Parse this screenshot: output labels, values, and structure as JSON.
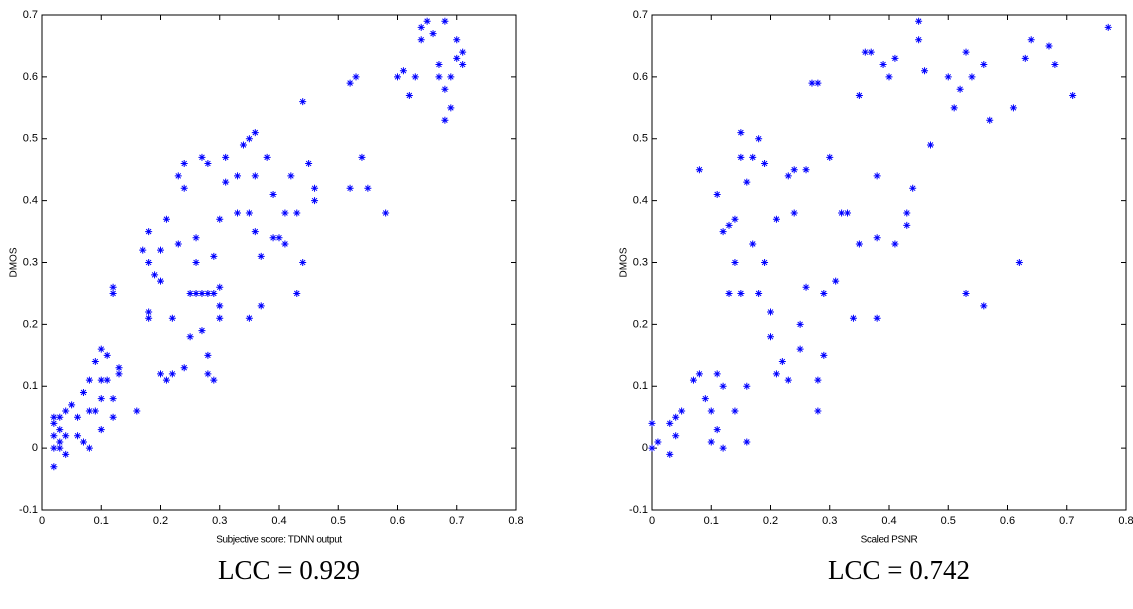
{
  "chart_data": [
    {
      "type": "scatter",
      "xlabel": "Subjective score: TDNN output",
      "ylabel": "DMOS",
      "color": "#0000ff",
      "annotation": "LCC = 0.929",
      "xlim": [
        0,
        0.8
      ],
      "ylim": [
        -0.1,
        0.7
      ],
      "xticks": [
        0,
        0.1,
        0.2,
        0.3,
        0.4,
        0.5,
        0.6,
        0.7,
        0.8
      ],
      "yticks": [
        -0.1,
        0,
        0.1,
        0.2,
        0.3,
        0.4,
        0.5,
        0.6,
        0.7
      ],
      "x": [
        0.02,
        0.02,
        0.02,
        0.02,
        0.03,
        0.03,
        0.03,
        0.04,
        0.04,
        0.02,
        0.03,
        0.04,
        0.05,
        0.06,
        0.06,
        0.07,
        0.08,
        0.08,
        0.07,
        0.08,
        0.09,
        0.09,
        0.1,
        0.1,
        0.11,
        0.1,
        0.11,
        0.12,
        0.13,
        0.13,
        0.1,
        0.12,
        0.12,
        0.12,
        0.16,
        0.17,
        0.18,
        0.18,
        0.19,
        0.2,
        0.2,
        0.18,
        0.18,
        0.2,
        0.21,
        0.22,
        0.21,
        0.22,
        0.23,
        0.23,
        0.24,
        0.24,
        0.25,
        0.26,
        0.27,
        0.28,
        0.29,
        0.26,
        0.27,
        0.28,
        0.26,
        0.27,
        0.28,
        0.29,
        0.28,
        0.24,
        0.25,
        0.3,
        0.3,
        0.3,
        0.29,
        0.3,
        0.31,
        0.31,
        0.33,
        0.33,
        0.34,
        0.35,
        0.36,
        0.35,
        0.36,
        0.36,
        0.37,
        0.37,
        0.35,
        0.38,
        0.39,
        0.39,
        0.4,
        0.41,
        0.41,
        0.42,
        0.43,
        0.43,
        0.44,
        0.44,
        0.45,
        0.46,
        0.46,
        0.52,
        0.52,
        0.53,
        0.54,
        0.55,
        0.58,
        0.6,
        0.61,
        0.62,
        0.63,
        0.64,
        0.65,
        0.66,
        0.64,
        0.67,
        0.67,
        0.68,
        0.68,
        0.69,
        0.68,
        0.7,
        0.7,
        0.71,
        0.71,
        0.69
      ],
      "values": [
        -0.03,
        0,
        0.02,
        0.04,
        0.05,
        0.03,
        0.01,
        0.02,
        -0.01,
        0.05,
        0,
        0.06,
        0.07,
        0.05,
        0.02,
        0.01,
        0,
        0.06,
        0.09,
        0.11,
        0.06,
        0.14,
        0.16,
        0.11,
        0.15,
        0.08,
        0.11,
        0.08,
        0.13,
        0.12,
        0.03,
        0.05,
        0.25,
        0.26,
        0.06,
        0.32,
        0.35,
        0.3,
        0.28,
        0.32,
        0.27,
        0.22,
        0.21,
        0.12,
        0.37,
        0.21,
        0.11,
        0.12,
        0.33,
        0.44,
        0.42,
        0.46,
        0.25,
        0.25,
        0.25,
        0.25,
        0.25,
        0.34,
        0.47,
        0.46,
        0.3,
        0.19,
        0.15,
        0.11,
        0.12,
        0.13,
        0.18,
        0.26,
        0.23,
        0.21,
        0.31,
        0.37,
        0.43,
        0.47,
        0.38,
        0.44,
        0.49,
        0.5,
        0.51,
        0.38,
        0.35,
        0.44,
        0.31,
        0.23,
        0.21,
        0.47,
        0.41,
        0.34,
        0.34,
        0.38,
        0.33,
        0.44,
        0.38,
        0.25,
        0.3,
        0.56,
        0.46,
        0.42,
        0.4,
        0.42,
        0.59,
        0.6,
        0.47,
        0.42,
        0.38,
        0.6,
        0.61,
        0.57,
        0.6,
        0.66,
        0.69,
        0.67,
        0.68,
        0.62,
        0.6,
        0.58,
        0.53,
        0.55,
        0.69,
        0.66,
        0.63,
        0.64,
        0.62,
        0.6
      ]
    },
    {
      "type": "scatter",
      "xlabel": "Scaled PSNR",
      "ylabel": "DMOS",
      "color": "#0000ff",
      "annotation": "LCC = 0.742",
      "xlim": [
        0,
        0.8
      ],
      "ylim": [
        -0.1,
        0.7
      ],
      "xticks": [
        0,
        0.1,
        0.2,
        0.3,
        0.4,
        0.5,
        0.6,
        0.7,
        0.8
      ],
      "yticks": [
        -0.1,
        0,
        0.1,
        0.2,
        0.3,
        0.4,
        0.5,
        0.6,
        0.7
      ],
      "x": [
        0,
        0,
        0.01,
        0.03,
        0.03,
        0.04,
        0.04,
        0.05,
        0.07,
        0.08,
        0.08,
        0.09,
        0.1,
        0.1,
        0.11,
        0.11,
        0.11,
        0.12,
        0.12,
        0.12,
        0.13,
        0.13,
        0.14,
        0.14,
        0.14,
        0.15,
        0.15,
        0.15,
        0.16,
        0.16,
        0.16,
        0.17,
        0.17,
        0.18,
        0.18,
        0.19,
        0.19,
        0.2,
        0.2,
        0.21,
        0.21,
        0.22,
        0.23,
        0.23,
        0.24,
        0.24,
        0.25,
        0.25,
        0.26,
        0.26,
        0.27,
        0.28,
        0.28,
        0.28,
        0.29,
        0.29,
        0.3,
        0.31,
        0.32,
        0.33,
        0.34,
        0.35,
        0.35,
        0.36,
        0.37,
        0.38,
        0.38,
        0.38,
        0.39,
        0.4,
        0.41,
        0.41,
        0.43,
        0.43,
        0.44,
        0.45,
        0.45,
        0.46,
        0.47,
        0.5,
        0.51,
        0.52,
        0.53,
        0.53,
        0.54,
        0.56,
        0.56,
        0.57,
        0.61,
        0.62,
        0.63,
        0.64,
        0.67,
        0.68,
        0.71,
        0.77
      ],
      "values": [
        0,
        0.04,
        0.01,
        0.04,
        -0.01,
        0.02,
        0.05,
        0.06,
        0.11,
        0.12,
        0.45,
        0.08,
        0.06,
        0.01,
        0.12,
        0.41,
        0.03,
        0,
        0.1,
        0.35,
        0.36,
        0.25,
        0.06,
        0.3,
        0.37,
        0.51,
        0.47,
        0.25,
        0.43,
        0.01,
        0.1,
        0.47,
        0.33,
        0.5,
        0.25,
        0.46,
        0.3,
        0.22,
        0.18,
        0.37,
        0.12,
        0.14,
        0.11,
        0.44,
        0.45,
        0.38,
        0.2,
        0.16,
        0.45,
        0.26,
        0.59,
        0.59,
        0.06,
        0.11,
        0.25,
        0.15,
        0.47,
        0.27,
        0.38,
        0.38,
        0.21,
        0.33,
        0.57,
        0.64,
        0.64,
        0.44,
        0.21,
        0.34,
        0.62,
        0.6,
        0.63,
        0.33,
        0.38,
        0.36,
        0.42,
        0.66,
        0.69,
        0.61,
        0.49,
        0.6,
        0.55,
        0.58,
        0.25,
        0.64,
        0.6,
        0.62,
        0.23,
        0.53,
        0.55,
        0.3,
        0.63,
        0.66,
        0.65,
        0.62,
        0.57,
        0.68
      ]
    }
  ]
}
